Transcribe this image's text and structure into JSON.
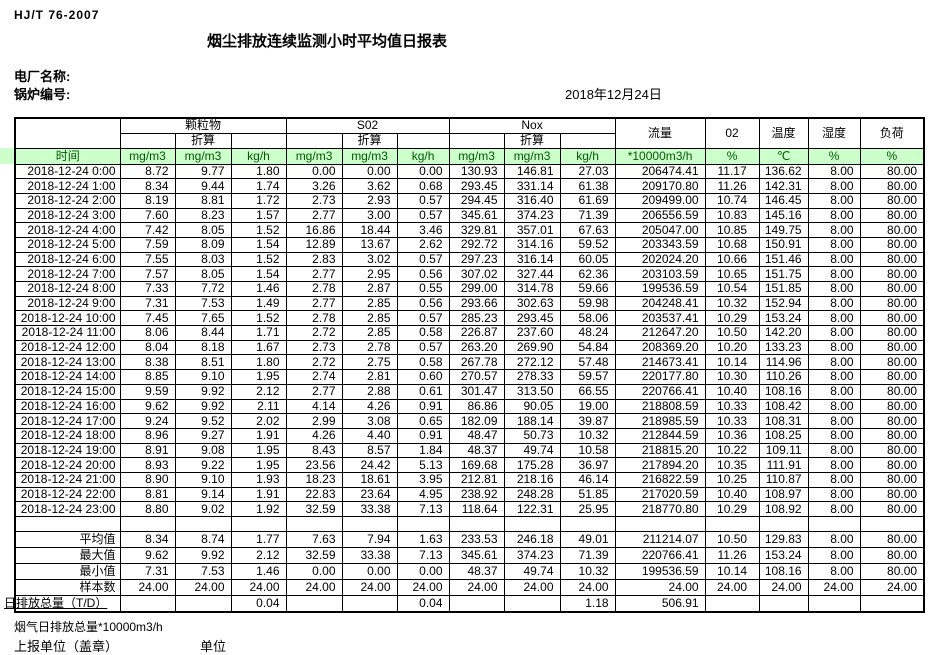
{
  "page": {
    "doc_code": "HJ/T  76-2007",
    "title": "烟尘排放连续监测小时平均值日报表",
    "plant_name_label": "电厂名称:",
    "boiler_no_label": "锅炉编号:",
    "report_date": "2018年12月24日",
    "footer_note": "烟气日排放总量*10000m3/h",
    "footer_report_unit_label": "上报单位（盖章）",
    "footer_unit_label": "单位"
  },
  "colors": {
    "band_bg": "#ccffcc",
    "band_text": "#005a00",
    "border": "#000000"
  },
  "table": {
    "columns": {
      "time": "时间",
      "pm": "颗粒物",
      "so2": "S02",
      "nox": "Nox",
      "flow": "流量",
      "o2": "02",
      "temp": "温度",
      "humidity": "湿度",
      "load": "负荷",
      "converted": "折算",
      "units": [
        "mg/m3",
        "mg/m3",
        "kg/h",
        "mg/m3",
        "mg/m3",
        "kg/h",
        "mg/m3",
        "mg/m3",
        "kg/h",
        "*10000m3/h",
        "%",
        "℃",
        "%",
        "%"
      ]
    },
    "rows": [
      {
        "time": "2018-12-24 0:00",
        "values": [
          "8.72",
          "9.77",
          "1.80",
          "0.00",
          "0.00",
          "0.00",
          "130.93",
          "146.81",
          "27.03",
          "206474.41",
          "11.17",
          "136.62",
          "8.00",
          "80.00"
        ]
      },
      {
        "time": "2018-12-24 1:00",
        "values": [
          "8.34",
          "9.44",
          "1.74",
          "3.26",
          "3.62",
          "0.68",
          "293.45",
          "331.14",
          "61.38",
          "209170.80",
          "11.26",
          "142.31",
          "8.00",
          "80.00"
        ]
      },
      {
        "time": "2018-12-24 2:00",
        "values": [
          "8.19",
          "8.81",
          "1.72",
          "2.73",
          "2.93",
          "0.57",
          "294.45",
          "316.40",
          "61.69",
          "209499.00",
          "10.74",
          "146.45",
          "8.00",
          "80.00"
        ]
      },
      {
        "time": "2018-12-24 3:00",
        "values": [
          "7.60",
          "8.23",
          "1.57",
          "2.77",
          "3.00",
          "0.57",
          "345.61",
          "374.23",
          "71.39",
          "206556.59",
          "10.83",
          "145.16",
          "8.00",
          "80.00"
        ]
      },
      {
        "time": "2018-12-24 4:00",
        "values": [
          "7.42",
          "8.05",
          "1.52",
          "16.86",
          "18.44",
          "3.46",
          "329.81",
          "357.01",
          "67.63",
          "205047.00",
          "10.85",
          "149.75",
          "8.00",
          "80.00"
        ]
      },
      {
        "time": "2018-12-24 5:00",
        "values": [
          "7.59",
          "8.09",
          "1.54",
          "12.89",
          "13.67",
          "2.62",
          "292.72",
          "314.16",
          "59.52",
          "203343.59",
          "10.68",
          "150.91",
          "8.00",
          "80.00"
        ]
      },
      {
        "time": "2018-12-24 6:00",
        "values": [
          "7.55",
          "8.03",
          "1.52",
          "2.83",
          "3.02",
          "0.57",
          "297.23",
          "316.14",
          "60.05",
          "202024.20",
          "10.66",
          "151.46",
          "8.00",
          "80.00"
        ]
      },
      {
        "time": "2018-12-24 7:00",
        "values": [
          "7.57",
          "8.05",
          "1.54",
          "2.77",
          "2.95",
          "0.56",
          "307.02",
          "327.44",
          "62.36",
          "203103.59",
          "10.65",
          "151.75",
          "8.00",
          "80.00"
        ]
      },
      {
        "time": "2018-12-24 8:00",
        "values": [
          "7.33",
          "7.72",
          "1.46",
          "2.78",
          "2.87",
          "0.55",
          "299.00",
          "314.78",
          "59.66",
          "199536.59",
          "10.54",
          "151.85",
          "8.00",
          "80.00"
        ]
      },
      {
        "time": "2018-12-24 9:00",
        "values": [
          "7.31",
          "7.53",
          "1.49",
          "2.77",
          "2.85",
          "0.56",
          "293.66",
          "302.63",
          "59.98",
          "204248.41",
          "10.32",
          "152.94",
          "8.00",
          "80.00"
        ]
      },
      {
        "time": "2018-12-24 10:00",
        "values": [
          "7.45",
          "7.65",
          "1.52",
          "2.78",
          "2.85",
          "0.57",
          "285.23",
          "293.45",
          "58.06",
          "203537.41",
          "10.29",
          "153.24",
          "8.00",
          "80.00"
        ]
      },
      {
        "time": "2018-12-24 11:00",
        "values": [
          "8.06",
          "8.44",
          "1.71",
          "2.72",
          "2.85",
          "0.58",
          "226.87",
          "237.60",
          "48.24",
          "212647.20",
          "10.50",
          "142.20",
          "8.00",
          "80.00"
        ]
      },
      {
        "time": "2018-12-24 12:00",
        "values": [
          "8.04",
          "8.18",
          "1.67",
          "2.73",
          "2.78",
          "0.57",
          "263.20",
          "269.90",
          "54.84",
          "208369.20",
          "10.20",
          "133.23",
          "8.00",
          "80.00"
        ]
      },
      {
        "time": "2018-12-24 13:00",
        "values": [
          "8.38",
          "8.51",
          "1.80",
          "2.72",
          "2.75",
          "0.58",
          "267.78",
          "272.12",
          "57.48",
          "214673.41",
          "10.14",
          "114.96",
          "8.00",
          "80.00"
        ]
      },
      {
        "time": "2018-12-24 14:00",
        "values": [
          "8.85",
          "9.10",
          "1.95",
          "2.74",
          "2.81",
          "0.60",
          "270.57",
          "278.33",
          "59.57",
          "220177.80",
          "10.30",
          "110.26",
          "8.00",
          "80.00"
        ]
      },
      {
        "time": "2018-12-24 15:00",
        "values": [
          "9.59",
          "9.92",
          "2.12",
          "2.77",
          "2.88",
          "0.61",
          "301.47",
          "313.50",
          "66.55",
          "220766.41",
          "10.40",
          "108.16",
          "8.00",
          "80.00"
        ]
      },
      {
        "time": "2018-12-24 16:00",
        "values": [
          "9.62",
          "9.92",
          "2.11",
          "4.14",
          "4.26",
          "0.91",
          "86.86",
          "90.05",
          "19.00",
          "218808.59",
          "10.33",
          "108.42",
          "8.00",
          "80.00"
        ]
      },
      {
        "time": "2018-12-24 17:00",
        "values": [
          "9.24",
          "9.52",
          "2.02",
          "2.99",
          "3.08",
          "0.65",
          "182.09",
          "188.14",
          "39.87",
          "218985.59",
          "10.33",
          "108.31",
          "8.00",
          "80.00"
        ]
      },
      {
        "time": "2018-12-24 18:00",
        "values": [
          "8.96",
          "9.27",
          "1.91",
          "4.26",
          "4.40",
          "0.91",
          "48.47",
          "50.73",
          "10.32",
          "212844.59",
          "10.36",
          "108.25",
          "8.00",
          "80.00"
        ]
      },
      {
        "time": "2018-12-24 19:00",
        "values": [
          "8.91",
          "9.08",
          "1.95",
          "8.43",
          "8.57",
          "1.84",
          "48.37",
          "49.74",
          "10.58",
          "218815.20",
          "10.22",
          "109.11",
          "8.00",
          "80.00"
        ]
      },
      {
        "time": "2018-12-24 20:00",
        "values": [
          "8.93",
          "9.22",
          "1.95",
          "23.56",
          "24.42",
          "5.13",
          "169.68",
          "175.28",
          "36.97",
          "217894.20",
          "10.35",
          "111.91",
          "8.00",
          "80.00"
        ]
      },
      {
        "time": "2018-12-24 21:00",
        "values": [
          "8.90",
          "9.10",
          "1.93",
          "18.23",
          "18.61",
          "3.95",
          "212.81",
          "218.16",
          "46.14",
          "216822.59",
          "10.25",
          "110.87",
          "8.00",
          "80.00"
        ]
      },
      {
        "time": "2018-12-24 22:00",
        "values": [
          "8.81",
          "9.14",
          "1.91",
          "22.83",
          "23.64",
          "4.95",
          "238.92",
          "248.28",
          "51.85",
          "217020.59",
          "10.40",
          "108.97",
          "8.00",
          "80.00"
        ]
      },
      {
        "time": "2018-12-24 23:00",
        "values": [
          "8.80",
          "9.02",
          "1.92",
          "32.59",
          "33.38",
          "7.13",
          "118.64",
          "122.31",
          "25.95",
          "218770.80",
          "10.29",
          "108.92",
          "8.00",
          "80.00"
        ]
      }
    ],
    "summary": [
      {
        "label": "平均值",
        "values": [
          "8.34",
          "8.74",
          "1.77",
          "7.63",
          "7.94",
          "1.63",
          "233.53",
          "246.18",
          "49.01",
          "211214.07",
          "10.50",
          "129.83",
          "8.00",
          "80.00"
        ]
      },
      {
        "label": "最大值",
        "values": [
          "9.62",
          "9.92",
          "2.12",
          "32.59",
          "33.38",
          "7.13",
          "345.61",
          "374.23",
          "71.39",
          "220766.41",
          "11.26",
          "153.24",
          "8.00",
          "80.00"
        ]
      },
      {
        "label": "最小值",
        "values": [
          "7.31",
          "7.53",
          "1.46",
          "0.00",
          "0.00",
          "0.00",
          "48.37",
          "49.74",
          "10.32",
          "199536.59",
          "10.14",
          "108.16",
          "8.00",
          "80.00"
        ]
      },
      {
        "label": "样本数",
        "values": [
          "24.00",
          "24.00",
          "24.00",
          "24.00",
          "24.00",
          "24.00",
          "24.00",
          "24.00",
          "24.00",
          "24.00",
          "24.00",
          "24.00",
          "24.00",
          "24.00"
        ]
      },
      {
        "label": "日排放总量（T/D）",
        "values": [
          "",
          "",
          "0.04",
          "",
          "",
          "0.04",
          "",
          "",
          "1.18",
          "506.91",
          "",
          "",
          "",
          ""
        ]
      }
    ]
  }
}
